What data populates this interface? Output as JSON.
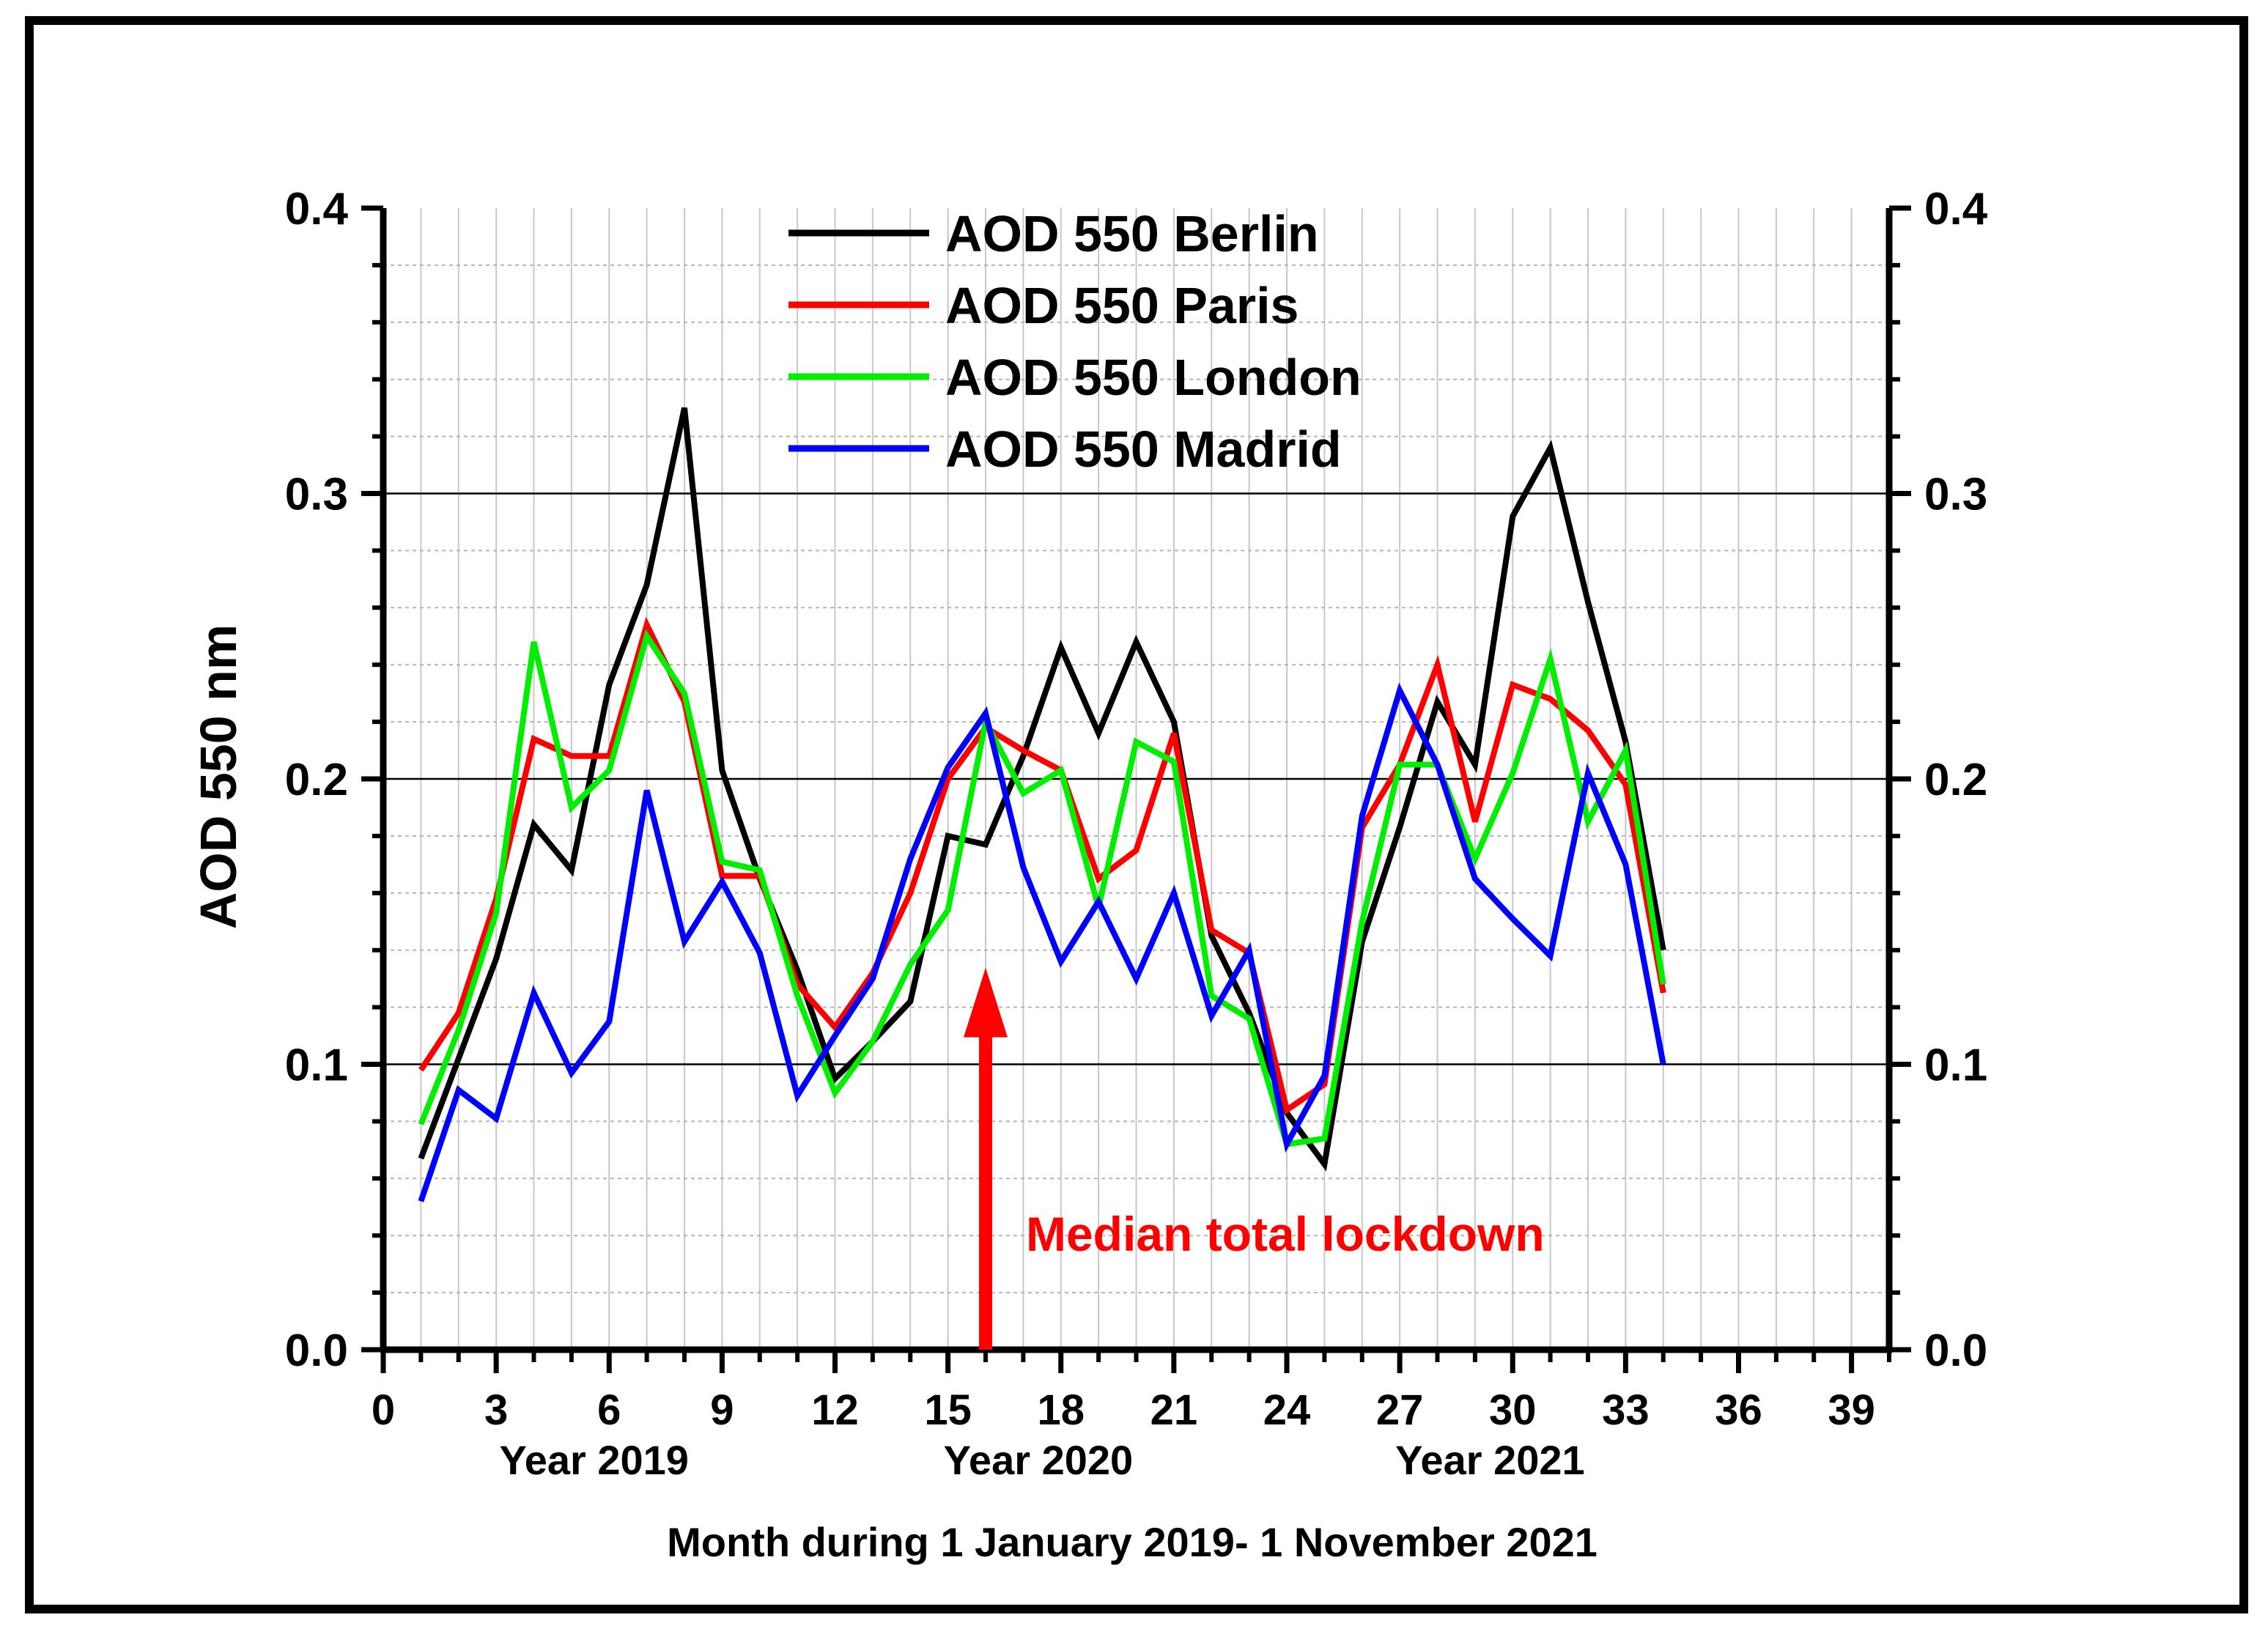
{
  "chart_data": {
    "type": "line",
    "title": "",
    "xlabel": "Month during 1 January 2019- 1 November 2021",
    "ylabel": "AOD 550 nm",
    "xlim": [
      0,
      40
    ],
    "ylim": [
      0.0,
      0.4
    ],
    "x_ticks": [
      0,
      3,
      6,
      9,
      12,
      15,
      18,
      21,
      24,
      27,
      30,
      33,
      36,
      39
    ],
    "y_ticks": [
      0.0,
      0.1,
      0.2,
      0.3,
      0.4
    ],
    "y_tick_labels": [
      "0.0",
      "0.1",
      "0.2",
      "0.3",
      "0.4"
    ],
    "grid": true,
    "legend_position": "top-center",
    "year_labels": [
      {
        "text": "Year 2019",
        "x": 5.6
      },
      {
        "text": "Year 2020",
        "x": 17.4
      },
      {
        "text": "Year 2021",
        "x": 29.4
      }
    ],
    "annotation": {
      "text": "Median total lockdown",
      "arrow_x": 16,
      "arrow_from_y": 0.0,
      "arrow_to_y": 0.13,
      "color": "#ff0000"
    },
    "x": [
      1,
      2,
      3,
      4,
      5,
      6,
      7,
      8,
      9,
      10,
      11,
      12,
      13,
      14,
      15,
      16,
      17,
      18,
      19,
      20,
      21,
      22,
      23,
      24,
      25,
      26,
      27,
      28,
      29,
      30,
      31,
      32,
      33,
      34
    ],
    "series": [
      {
        "name": "AOD 550 Berlin",
        "color": "#000000",
        "values": [
          0.067,
          0.102,
          0.137,
          0.184,
          0.168,
          0.233,
          0.268,
          0.33,
          0.203,
          0.165,
          0.133,
          0.095,
          0.108,
          0.122,
          0.18,
          0.177,
          0.208,
          0.246,
          0.216,
          0.248,
          0.22,
          0.145,
          0.118,
          0.083,
          0.065,
          0.143,
          0.183,
          0.227,
          0.205,
          0.292,
          0.316,
          0.262,
          0.213,
          0.14
        ]
      },
      {
        "name": "AOD 550 Paris",
        "color": "#ff0000",
        "values": [
          0.098,
          0.118,
          0.158,
          0.214,
          0.208,
          0.208,
          0.254,
          0.227,
          0.166,
          0.166,
          0.128,
          0.113,
          0.132,
          0.16,
          0.2,
          0.218,
          0.21,
          0.203,
          0.165,
          0.175,
          0.216,
          0.147,
          0.139,
          0.084,
          0.093,
          0.183,
          0.205,
          0.24,
          0.185,
          0.233,
          0.228,
          0.217,
          0.198,
          0.125
        ]
      },
      {
        "name": "AOD 550 London",
        "color": "#00ee00",
        "values": [
          0.079,
          0.112,
          0.153,
          0.248,
          0.19,
          0.203,
          0.25,
          0.23,
          0.171,
          0.168,
          0.124,
          0.09,
          0.108,
          0.135,
          0.154,
          0.22,
          0.195,
          0.203,
          0.155,
          0.213,
          0.206,
          0.124,
          0.116,
          0.072,
          0.074,
          0.15,
          0.205,
          0.205,
          0.172,
          0.202,
          0.242,
          0.185,
          0.21,
          0.128
        ]
      },
      {
        "name": "AOD 550 Madrid",
        "color": "#0000ff",
        "values": [
          0.052,
          0.091,
          0.081,
          0.125,
          0.097,
          0.115,
          0.196,
          0.143,
          0.164,
          0.139,
          0.089,
          0.11,
          0.13,
          0.172,
          0.204,
          0.223,
          0.169,
          0.136,
          0.157,
          0.13,
          0.16,
          0.117,
          0.14,
          0.072,
          0.096,
          0.187,
          0.231,
          0.205,
          0.165,
          0.151,
          0.138,
          0.202,
          0.17,
          0.1
        ]
      }
    ]
  }
}
